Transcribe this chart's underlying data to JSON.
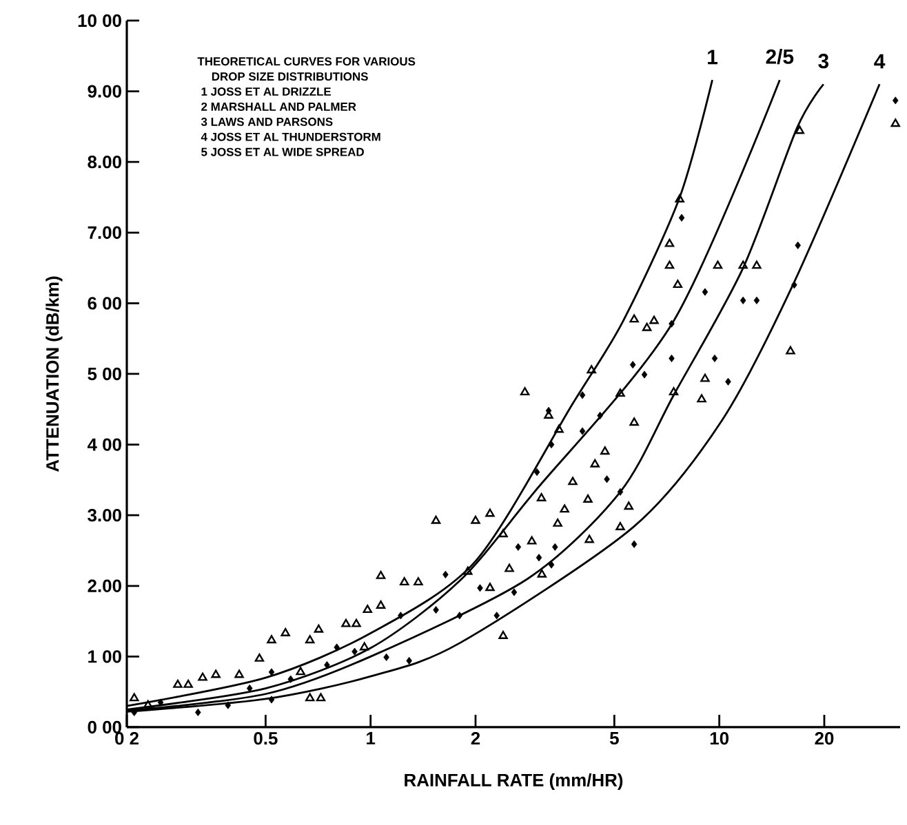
{
  "chart_data": {
    "type": "scatter",
    "xlabel": "RAINFALL RATE (mm/HR)",
    "ylabel": "ATTENUATION (dB/km)",
    "log": "x",
    "xlim": [
      0.2,
      33
    ],
    "ylim": [
      0,
      10
    ],
    "xticks": [
      {
        "value": 0.2,
        "label": "0 2"
      },
      0.5,
      1,
      2,
      5,
      10,
      20
    ],
    "yticks": [
      {
        "value": 0,
        "label": "0 00"
      },
      {
        "value": 1,
        "label": "1 00"
      },
      {
        "value": 2,
        "label": "2.00"
      },
      {
        "value": 3,
        "label": "3.00"
      },
      {
        "value": 4,
        "label": "4 00"
      },
      {
        "value": 5,
        "label": "5 00"
      },
      {
        "value": 6,
        "label": "6 00"
      },
      {
        "value": 7,
        "label": "7.00"
      },
      {
        "value": 8,
        "label": "8.00"
      },
      {
        "value": 9,
        "label": "9.00"
      },
      {
        "value": 10,
        "label": "10 00"
      }
    ],
    "annotations": [
      "THEORETICAL CURVES FOR VARIOUS",
      "DROP SIZE DISTRIBUTIONS",
      "1   JOSS ET AL  DRIZZLE",
      "2   MARSHALL AND PALMER",
      "3   LAWS AND PARSONS",
      "4   JOSS ET AL  THUNDERSTORM",
      "5   JOSS ET AL  WIDE SPREAD"
    ],
    "series": [
      {
        "type": "line",
        "name": "1",
        "color": "#000000",
        "marker": "none",
        "x": [
          0.2,
          0.5,
          1,
          2,
          3.8,
          5.3,
          7.7,
          9.55
        ],
        "values": [
          0.3,
          0.7,
          1.33,
          2.35,
          4.58,
          5.75,
          7.5,
          9.16
        ]
      },
      {
        "type": "line",
        "name": "2/5",
        "color": "#000000",
        "marker": "none",
        "x": [
          0.2,
          0.5,
          1,
          1.8,
          2.95,
          7.4,
          14.9
        ],
        "values": [
          0.25,
          0.55,
          1.12,
          2.07,
          3.33,
          5.75,
          9.16
        ]
      },
      {
        "type": "line",
        "name": "3",
        "color": "#000000",
        "marker": "none",
        "x": [
          0.2,
          0.5,
          1,
          2.82,
          5.2,
          7.4,
          11.7,
          16.7,
          19.9
        ],
        "values": [
          0.23,
          0.47,
          1.0,
          2.1,
          3.33,
          4.7,
          6.5,
          8.48,
          9.1
        ]
      },
      {
        "type": "line",
        "name": "4",
        "color": "#000000",
        "marker": "none",
        "x": [
          0.2,
          0.5,
          1,
          1.8,
          5.66,
          10.2,
          16.4,
          28.8
        ],
        "values": [
          0.22,
          0.4,
          0.72,
          1.19,
          2.83,
          4.35,
          6.3,
          9.1
        ]
      },
      {
        "color": "#000000",
        "marker": "triangle",
        "x": [
          7.7,
          7.2,
          7.2,
          7.6,
          5.7,
          6.5,
          6.2,
          4.3,
          5.2,
          2.77,
          9.9,
          12.8,
          11.7,
          17.0,
          32,
          16.0,
          9.1,
          7.4,
          8.9,
          3.24,
          3.47,
          5.7,
          4.7,
          4.4,
          3.09,
          3.8,
          3.6,
          4.2,
          3.44,
          5.5,
          5.2,
          4.24,
          2.0,
          2.2,
          2.4,
          2.9,
          1.9,
          2.5,
          3.1,
          2.2,
          2.4,
          1.54,
          1.07,
          1.25,
          1.37,
          0.98,
          1.07,
          0.91,
          0.85,
          0.57,
          0.52,
          0.71,
          0.67,
          0.48,
          0.42,
          0.36,
          0.33,
          0.3,
          0.28,
          0.23,
          0.21,
          0.67,
          0.72,
          0.63,
          0.96
        ],
        "values": [
          7.47,
          6.84,
          6.53,
          6.26,
          5.77,
          5.75,
          5.65,
          5.05,
          4.72,
          4.74,
          6.53,
          6.53,
          6.53,
          8.44,
          8.54,
          5.32,
          4.93,
          4.74,
          4.64,
          4.41,
          4.21,
          4.31,
          3.9,
          3.72,
          3.24,
          3.47,
          3.08,
          3.22,
          2.88,
          3.12,
          2.83,
          2.65,
          2.92,
          3.02,
          2.73,
          2.63,
          2.2,
          2.24,
          2.16,
          1.97,
          1.29,
          2.92,
          2.14,
          2.05,
          2.05,
          1.66,
          1.72,
          1.46,
          1.46,
          1.33,
          1.23,
          1.38,
          1.23,
          0.97,
          0.74,
          0.74,
          0.7,
          0.6,
          0.6,
          0.31,
          0.41,
          0.41,
          0.41,
          0.78,
          1.13
        ]
      },
      {
        "color": "#000000",
        "marker": "diamond",
        "x": [
          7.8,
          32,
          16.8,
          16.4,
          9.1,
          11.7,
          12.8,
          7.3,
          7.3,
          5.65,
          6.1,
          9.7,
          10.6,
          4.05,
          3.24,
          4.55,
          4.05,
          3.3,
          3.0,
          4.76,
          5.2,
          5.7,
          2.65,
          3.38,
          3.3,
          3.04,
          2.58,
          2.3,
          2.06,
          1.8,
          0.21,
          0.25,
          0.32,
          0.39,
          0.45,
          0.52,
          0.59,
          0.75,
          0.9,
          1.11,
          1.29,
          1.22,
          1.54,
          1.64,
          0.8,
          0.52
        ],
        "values": [
          7.21,
          8.87,
          6.82,
          6.26,
          6.16,
          6.04,
          6.04,
          5.71,
          5.22,
          5.13,
          4.99,
          5.22,
          4.89,
          4.7,
          4.48,
          4.41,
          4.19,
          4.0,
          3.61,
          3.51,
          3.33,
          2.59,
          2.55,
          2.55,
          2.3,
          2.4,
          1.91,
          1.58,
          1.97,
          1.58,
          0.21,
          0.35,
          0.21,
          0.31,
          0.55,
          0.39,
          0.68,
          0.88,
          1.07,
          0.99,
          0.94,
          1.58,
          1.66,
          2.16,
          1.13,
          0.78
        ]
      }
    ]
  }
}
